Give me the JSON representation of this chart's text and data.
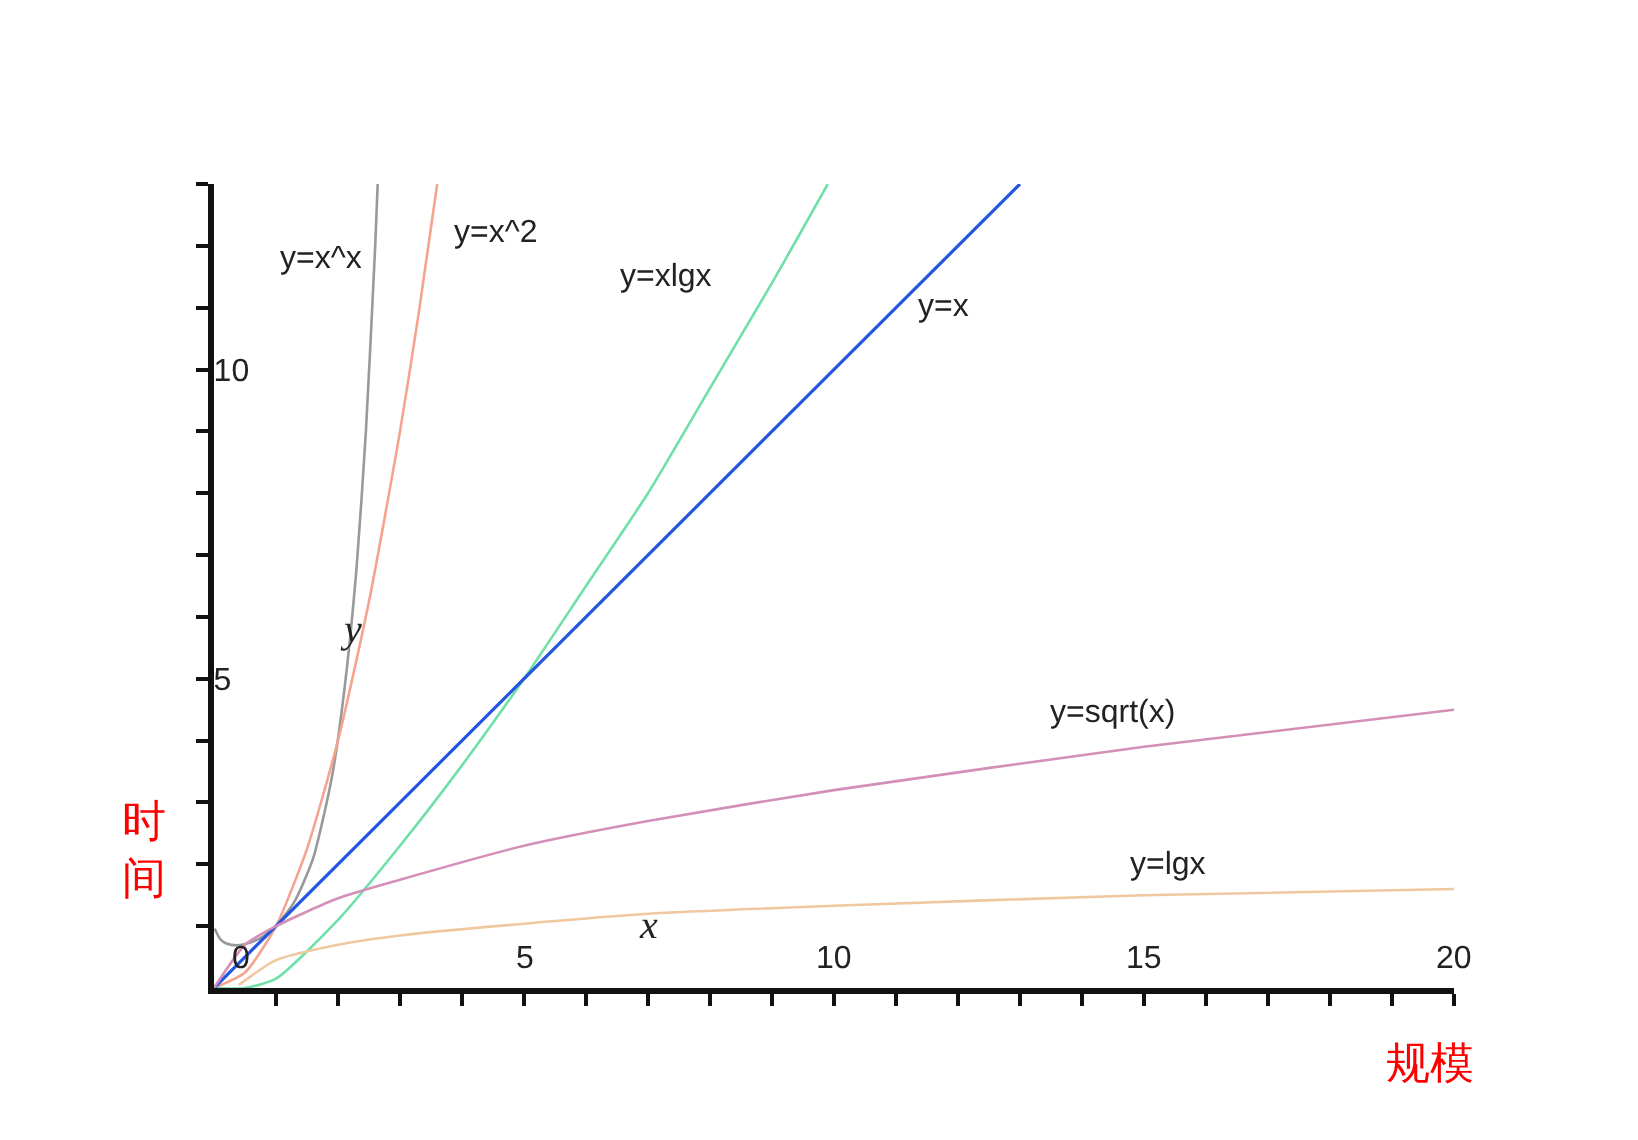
{
  "chart_data": {
    "type": "line",
    "xlabel": "规模",
    "ylabel": "时间",
    "xlim": [
      0,
      20
    ],
    "ylim": [
      0,
      13
    ],
    "xticks": [
      {
        "value": 0,
        "label": "0"
      },
      {
        "value": 1,
        "label": null
      },
      {
        "value": 2,
        "label": null
      },
      {
        "value": 3,
        "label": null
      },
      {
        "value": 4,
        "label": null
      },
      {
        "value": 5,
        "label": "5"
      },
      {
        "value": 6,
        "label": null
      },
      {
        "value": 7,
        "label": null
      },
      {
        "value": 8,
        "label": null
      },
      {
        "value": 9,
        "label": null
      },
      {
        "value": 10,
        "label": "10"
      },
      {
        "value": 11,
        "label": null
      },
      {
        "value": 12,
        "label": null
      },
      {
        "value": 13,
        "label": null
      },
      {
        "value": 14,
        "label": null
      },
      {
        "value": 15,
        "label": "15"
      },
      {
        "value": 16,
        "label": null
      },
      {
        "value": 17,
        "label": null
      },
      {
        "value": 18,
        "label": null
      },
      {
        "value": 19,
        "label": null
      },
      20
    ],
    "yticks": [
      {
        "value": 1,
        "label": null
      },
      {
        "value": 2,
        "label": null
      },
      {
        "value": 3,
        "label": null
      },
      {
        "value": 4,
        "label": null
      },
      {
        "value": 5,
        "label": "5"
      },
      {
        "value": 6,
        "label": null
      },
      {
        "value": 7,
        "label": null
      },
      {
        "value": 8,
        "label": null
      },
      {
        "value": 9,
        "label": null
      },
      {
        "value": 10,
        "label": "10"
      },
      {
        "value": 11,
        "label": null
      },
      {
        "value": 12,
        "label": null
      },
      {
        "value": 13,
        "label": null
      }
    ],
    "legend": false,
    "marker": "none",
    "line_style": "solid",
    "series": [
      {
        "name": "y=x^x",
        "color": "#999999",
        "x": [
          0.01,
          0.1,
          0.2,
          0.37,
          0.6,
          0.8,
          1,
          1.3,
          1.6,
          1.9,
          2.1,
          2.3,
          2.45,
          2.6,
          2.64
        ],
        "values": [
          0.96,
          0.79,
          0.72,
          0.69,
          0.74,
          0.84,
          1,
          1.4,
          2.1,
          3.4,
          4.8,
          6.8,
          9,
          12,
          13
        ]
      },
      {
        "name": "y=x^2",
        "color": "#f4a48e",
        "x": [
          0,
          0.5,
          1,
          1.5,
          2,
          2.5,
          3,
          3.3,
          3.6
        ],
        "values": [
          0,
          0.25,
          1,
          2.25,
          4,
          6.25,
          9,
          10.9,
          13
        ]
      },
      {
        "name": "y=xlgx",
        "color": "#6ee0a8",
        "x": [
          0,
          0.5,
          1,
          2,
          3,
          4,
          5,
          6,
          7,
          8,
          9,
          9.9
        ],
        "values": [
          0,
          0,
          0.15,
          1.1,
          2.3,
          3.6,
          5,
          6.5,
          8,
          9.7,
          11.4,
          13
        ]
      },
      {
        "name": "y=x",
        "color": "#2255e0",
        "x": [
          0,
          13
        ],
        "values": [
          0,
          13
        ]
      },
      {
        "name": "y=sqrt(x)",
        "color": "#d48fb8",
        "x": [
          0,
          0.5,
          1,
          2,
          3,
          5,
          7,
          10,
          15,
          20
        ],
        "values": [
          0,
          0.7,
          1,
          1.45,
          1.75,
          2.3,
          2.7,
          3.2,
          3.9,
          4.5
        ]
      },
      {
        "name": "y=lgx",
        "color": "#f0c8a0",
        "x": [
          0.4,
          1,
          2,
          3,
          5,
          7,
          10,
          15,
          20
        ],
        "values": [
          0.05,
          0.45,
          0.7,
          0.85,
          1.04,
          1.2,
          1.33,
          1.5,
          1.6
        ]
      }
    ],
    "annotations": [
      "y",
      "x"
    ]
  }
}
